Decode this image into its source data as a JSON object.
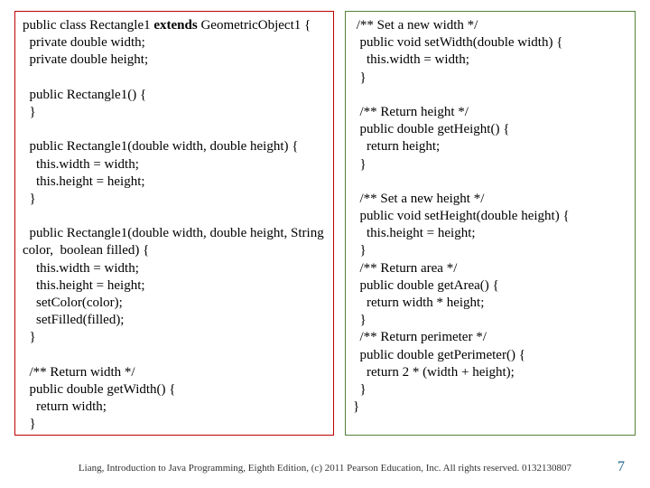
{
  "left": {
    "l01a": "public class Rectangle1 ",
    "l01b": "extends",
    "l01c": " GeometricObject1 {",
    "l02": "  private double width;",
    "l03": "  private double height;",
    "blank": " ",
    "l04": "  public Rectangle1() {",
    "l05": "  }",
    "l06": "  public Rectangle1(double width, double height) {",
    "l07": "    this.width = width;",
    "l08": "    this.height = height;",
    "l09": "  }",
    "l10": "  public Rectangle1(double width, double height, String color,  boolean filled) {",
    "l11": "    this.width = width;",
    "l12": "    this.height = height;",
    "l13": "    setColor(color);",
    "l14": "    setFilled(filled);",
    "l15": "  }",
    "l16": "  /** Return width */",
    "l17": "  public double getWidth() {",
    "l18": "    return width;",
    "l19": "  }"
  },
  "right": {
    "r01": " /** Set a new width */",
    "r02": "  public void setWidth(double width) {",
    "r03": "    this.width = width;",
    "r04": "  }",
    "blank": " ",
    "r05": "  /** Return height */",
    "r06": "  public double getHeight() {",
    "r07": "    return height;",
    "r08": "  }",
    "r09": "  /** Set a new height */",
    "r10": "  public void setHeight(double height) {",
    "r11": "    this.height = height;",
    "r12": "  }",
    "r13": "  /** Return area */",
    "r14": "  public double getArea() {",
    "r15": "    return width * height;",
    "r16": "  }",
    "r17": "  /** Return perimeter */",
    "r18": "  public double getPerimeter() {",
    "r19": "    return 2 * (width + height);",
    "r20": "  }",
    "r21": "}"
  },
  "footer": "Liang, Introduction to Java Programming, Eighth Edition, (c) 2011 Pearson Education, Inc. All rights reserved. 0132130807",
  "pagenum": "7",
  "colors": {
    "left_border": "#c00000",
    "right_border": "#558139",
    "pagenum_color": "#1f6390"
  }
}
